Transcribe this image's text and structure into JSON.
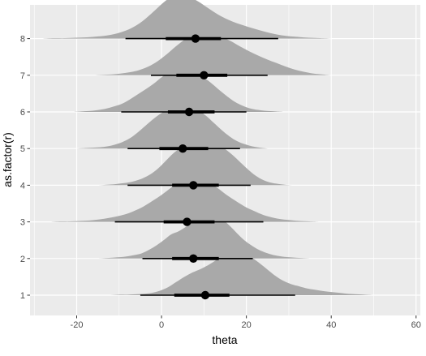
{
  "chart_data": {
    "type": "halfeye",
    "title": "",
    "xlabel": "theta",
    "ylabel": "as.factor(r)",
    "xlim": [
      -31,
      61
    ],
    "x_ticks": [
      -20,
      0,
      20,
      40,
      60
    ],
    "x_minor_ticks": [
      -30,
      -10,
      10,
      30,
      50
    ],
    "grid": true,
    "legend": "none",
    "colors": {
      "panel": "#ebebeb",
      "grid": "#ffffff",
      "density": "#a9a9a9",
      "interval": "#000000",
      "tick_text": "#4d4d4d",
      "axis_tick": "#333333"
    },
    "categories": [
      "1",
      "2",
      "3",
      "4",
      "5",
      "6",
      "7",
      "8"
    ],
    "series": [
      {
        "category": "1",
        "point": 10.3,
        "interval_66": [
          3.0,
          16.0
        ],
        "interval_95": [
          -5.0,
          31.5
        ],
        "support": [
          -14,
          50
        ],
        "density": [
          0.0,
          0.0,
          0.01,
          0.01,
          0.02,
          0.03,
          0.05,
          0.1,
          0.18,
          0.3,
          0.42,
          0.52,
          0.6,
          0.7,
          0.82,
          0.95,
          1.0,
          0.96,
          0.88,
          0.75,
          0.6,
          0.45,
          0.33,
          0.25,
          0.2,
          0.15,
          0.12,
          0.09,
          0.07,
          0.05,
          0.03,
          0.02,
          0.01,
          0.0
        ]
      },
      {
        "category": "2",
        "point": 7.5,
        "interval_66": [
          2.5,
          13.5
        ],
        "interval_95": [
          -4.5,
          21.5
        ],
        "support": [
          -15,
          35
        ],
        "density": [
          0.0,
          0.01,
          0.02,
          0.03,
          0.05,
          0.08,
          0.12,
          0.2,
          0.3,
          0.42,
          0.55,
          0.62,
          0.72,
          0.85,
          0.96,
          1.0,
          0.97,
          0.9,
          0.75,
          0.58,
          0.42,
          0.3,
          0.2,
          0.13,
          0.08,
          0.05,
          0.03,
          0.02,
          0.01,
          0.0
        ]
      },
      {
        "category": "3",
        "point": 6.0,
        "interval_66": [
          0.5,
          12.5
        ],
        "interval_95": [
          -11.0,
          24.0
        ],
        "support": [
          -26,
          37
        ],
        "density": [
          0.0,
          0.01,
          0.01,
          0.02,
          0.03,
          0.05,
          0.08,
          0.12,
          0.17,
          0.25,
          0.35,
          0.48,
          0.62,
          0.78,
          0.92,
          1.0,
          0.98,
          0.9,
          0.78,
          0.62,
          0.48,
          0.35,
          0.25,
          0.16,
          0.1,
          0.06,
          0.04,
          0.02,
          0.01,
          0.0
        ]
      },
      {
        "category": "4",
        "point": 7.5,
        "interval_66": [
          2.5,
          13.5
        ],
        "interval_95": [
          -8.0,
          21.0
        ],
        "support": [
          -15,
          31
        ],
        "density": [
          0.0,
          0.01,
          0.02,
          0.04,
          0.06,
          0.1,
          0.16,
          0.25,
          0.38,
          0.55,
          0.72,
          0.85,
          0.93,
          0.98,
          1.0,
          0.98,
          0.92,
          0.82,
          0.68,
          0.52,
          0.36,
          0.22,
          0.12,
          0.06,
          0.03,
          0.01,
          0.0
        ]
      },
      {
        "category": "5",
        "point": 5.0,
        "interval_66": [
          -0.5,
          11.0
        ],
        "interval_95": [
          -8.0,
          18.5
        ],
        "support": [
          -20,
          25
        ],
        "density": [
          0.0,
          0.01,
          0.02,
          0.03,
          0.05,
          0.09,
          0.15,
          0.24,
          0.37,
          0.52,
          0.67,
          0.8,
          0.91,
          0.98,
          1.0,
          0.96,
          0.87,
          0.74,
          0.58,
          0.42,
          0.28,
          0.17,
          0.1,
          0.05,
          0.02,
          0.0
        ]
      },
      {
        "category": "6",
        "point": 6.5,
        "interval_66": [
          1.5,
          12.5
        ],
        "interval_95": [
          -9.5,
          20.0
        ],
        "support": [
          -21,
          29
        ],
        "density": [
          0.0,
          0.01,
          0.02,
          0.04,
          0.07,
          0.12,
          0.18,
          0.28,
          0.4,
          0.52,
          0.65,
          0.8,
          0.92,
          1.0,
          0.97,
          0.9,
          0.8,
          0.66,
          0.5,
          0.35,
          0.22,
          0.13,
          0.07,
          0.04,
          0.02,
          0.01,
          0.0
        ]
      },
      {
        "category": "7",
        "point": 10.0,
        "interval_66": [
          3.5,
          15.5
        ],
        "interval_95": [
          -2.5,
          25.0
        ],
        "support": [
          -16,
          40
        ],
        "density": [
          0.0,
          0.01,
          0.02,
          0.04,
          0.07,
          0.12,
          0.2,
          0.32,
          0.48,
          0.66,
          0.82,
          0.95,
          1.0,
          0.96,
          0.88,
          0.78,
          0.66,
          0.55,
          0.45,
          0.36,
          0.28,
          0.2,
          0.13,
          0.08,
          0.04,
          0.02,
          0.0
        ]
      },
      {
        "category": "8",
        "point": 8.0,
        "interval_66": [
          1.0,
          14.0
        ],
        "interval_95": [
          -8.5,
          27.5
        ],
        "support": [
          -28,
          40
        ],
        "density": [
          0.0,
          0.01,
          0.01,
          0.02,
          0.03,
          0.05,
          0.08,
          0.14,
          0.24,
          0.4,
          0.62,
          0.85,
          1.0,
          0.97,
          0.85,
          0.68,
          0.52,
          0.4,
          0.31,
          0.23,
          0.16,
          0.1,
          0.06,
          0.04,
          0.02,
          0.01,
          0.0
        ]
      }
    ]
  }
}
